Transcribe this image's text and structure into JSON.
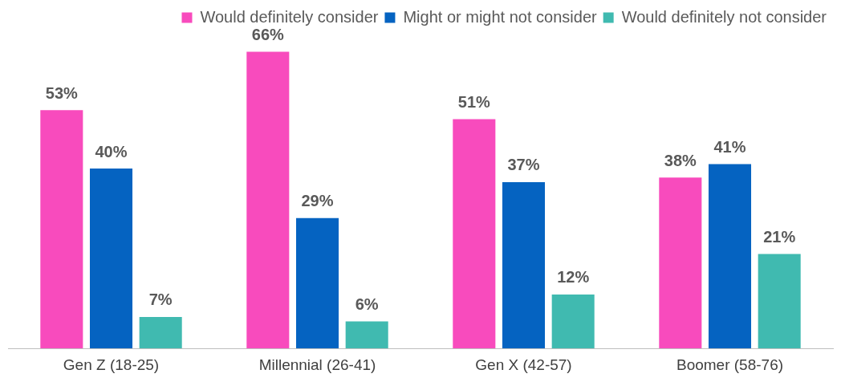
{
  "chart_data": {
    "type": "bar",
    "categories": [
      "Gen Z (18-25)",
      "Millennial (26-41)",
      "Gen X (42-57)",
      "Boomer (58-76)"
    ],
    "series": [
      {
        "name": "Would definitely consider",
        "color": "#f84bbd",
        "values": [
          53,
          66,
          51,
          38
        ],
        "value_labels": [
          "53%",
          "66%",
          "51%",
          "38%"
        ]
      },
      {
        "name": "Might or might not consider",
        "color": "#0563c1",
        "values": [
          40,
          29,
          37,
          41
        ],
        "value_labels": [
          "40%",
          "29%",
          "37%",
          "41%"
        ]
      },
      {
        "name": "Would definitely not consider",
        "color": "#40bab0",
        "values": [
          7,
          6,
          12,
          21
        ],
        "value_labels": [
          "7%",
          "6%",
          "12%",
          "21%"
        ]
      }
    ],
    "legend": "top",
    "grid": false
  }
}
